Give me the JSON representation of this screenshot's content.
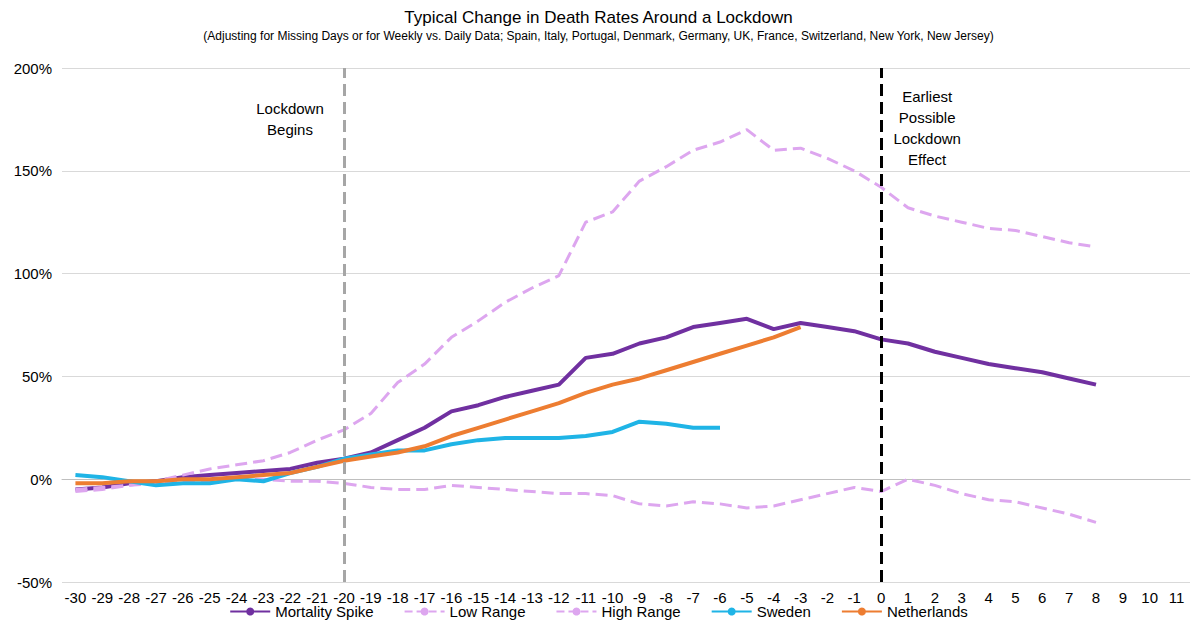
{
  "chart_data": {
    "type": "line",
    "title": "Typical Change in Death Rates Around a Lockdown",
    "subtitle": "(Adjusting for Missing Days or for Weekly vs. Daily Data; Spain, Italy, Portugal, Denmark, Germany, UK, France, Switzerland, New York, New Jersey)",
    "categories": [
      -30,
      -29,
      -28,
      -27,
      -26,
      -25,
      -24,
      -23,
      -22,
      -21,
      -20,
      -19,
      -18,
      -17,
      -16,
      -15,
      -14,
      -13,
      -12,
      -11,
      -10,
      -9,
      -8,
      -7,
      -6,
      -5,
      -4,
      -3,
      -2,
      -1,
      0,
      1,
      2,
      3,
      4,
      5,
      6,
      7,
      8,
      9,
      10,
      11
    ],
    "series": [
      {
        "name": "Mortality Spike",
        "color": "#7030a0",
        "line_style": "solid",
        "values": [
          -5,
          -4,
          -2,
          -1,
          1,
          2,
          3,
          4,
          5,
          8,
          10,
          13,
          19,
          25,
          33,
          36,
          40,
          43,
          46,
          59,
          61,
          66,
          69,
          74,
          76,
          78,
          73,
          76,
          74,
          72,
          68,
          66,
          62,
          59,
          56,
          54,
          52,
          49,
          46,
          null,
          null,
          null
        ]
      },
      {
        "name": "Low Range",
        "color": "#dda6ef",
        "line_style": "dashed",
        "values": [
          -6,
          -5,
          -3,
          -2,
          -1,
          -1,
          0,
          0,
          -1,
          -1,
          -2,
          -4,
          -5,
          -5,
          -3,
          -4,
          -5,
          -6,
          -7,
          -7,
          -8,
          -12,
          -13,
          -11,
          -12,
          -14,
          -13,
          -10,
          -7,
          -4,
          -6,
          0,
          -3,
          -7,
          -10,
          -11,
          -14,
          -17,
          -21,
          null,
          null,
          null
        ]
      },
      {
        "name": "High Range",
        "color": "#dda6ef",
        "line_style": "dashed",
        "values": [
          -5,
          -4,
          -3,
          -1,
          2,
          5,
          7,
          9,
          13,
          19,
          24,
          32,
          47,
          56,
          69,
          77,
          86,
          93,
          99,
          125,
          130,
          145,
          152,
          160,
          164,
          170,
          160,
          161,
          156,
          150,
          142,
          132,
          128,
          125,
          122,
          121,
          118,
          115,
          113,
          null,
          null,
          null
        ]
      },
      {
        "name": "Sweden",
        "color": "#1fb4e6",
        "line_style": "solid",
        "values": [
          2,
          1,
          -1,
          -3,
          -2,
          -2,
          0,
          -1,
          3,
          6,
          10,
          12,
          14,
          14,
          17,
          19,
          20,
          20,
          20,
          21,
          23,
          28,
          27,
          25,
          25,
          null,
          null,
          null,
          null,
          null,
          null,
          null,
          null,
          null,
          null,
          null,
          null,
          null,
          null,
          null,
          null,
          null
        ]
      },
      {
        "name": "Netherlands",
        "color": "#ed7d31",
        "line_style": "solid",
        "values": [
          -2,
          -2,
          -1,
          -1,
          0,
          0,
          1,
          2,
          3,
          6,
          9,
          11,
          13,
          16,
          21,
          25,
          29,
          33,
          37,
          42,
          46,
          49,
          53,
          57,
          61,
          65,
          69,
          74,
          null,
          null,
          null,
          null,
          null,
          null,
          null,
          null,
          null,
          null,
          null,
          null,
          null,
          null
        ]
      }
    ],
    "ylim": [
      -50,
      200
    ],
    "yticks": [
      {
        "value": -50,
        "label": "-50%"
      },
      {
        "value": 0,
        "label": "0%"
      },
      {
        "value": 50,
        "label": "50%"
      },
      {
        "value": 100,
        "label": "100%"
      },
      {
        "value": 150,
        "label": "150%"
      },
      {
        "value": 200,
        "label": "200%"
      }
    ],
    "annotations": [
      {
        "x": -20,
        "text": "Lockdown Begins",
        "color": "#a6a6a6",
        "line_style": "dashed"
      },
      {
        "x": 0,
        "text": "Earliest Possible Lockdown Effect",
        "color": "#000000",
        "line_style": "dashed"
      }
    ],
    "grid": true,
    "legend": "bottom"
  }
}
